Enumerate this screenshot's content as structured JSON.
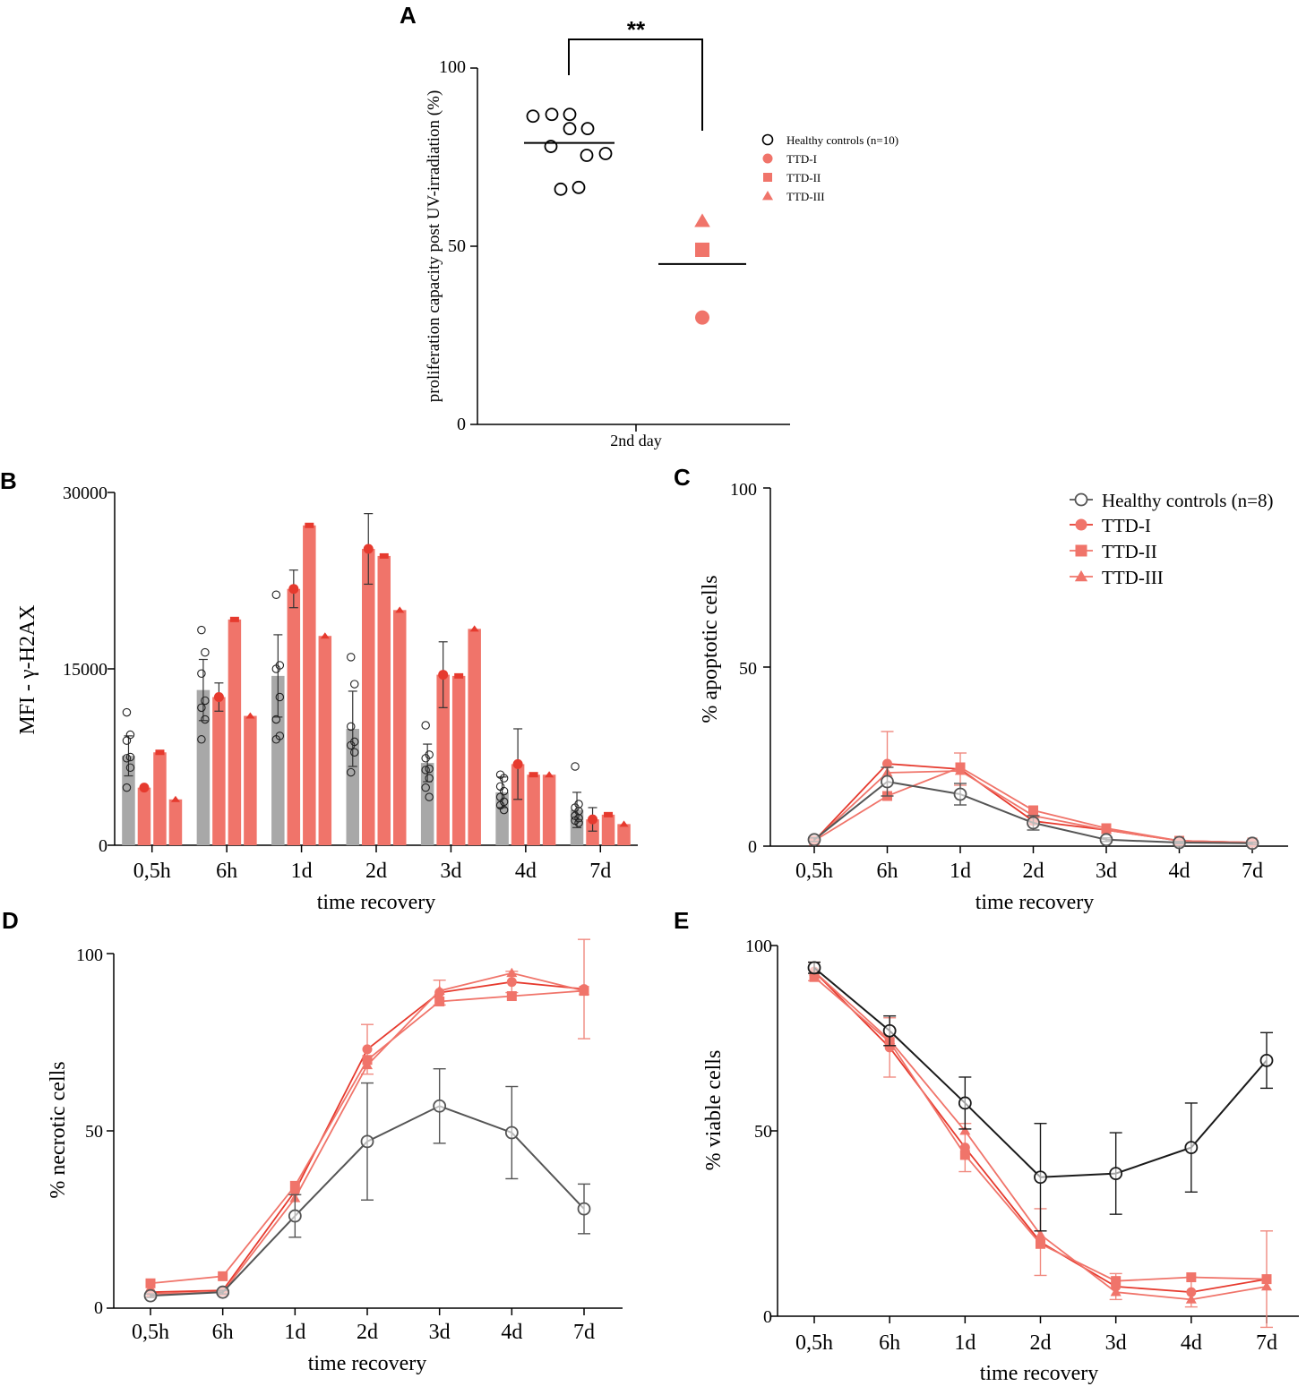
{
  "colors": {
    "red": "#e63a2e",
    "salmon": "#f0746a",
    "grey": "#a8a8a8",
    "dark": "#1a1a1a",
    "mid": "#555555"
  },
  "panels": [
    {
      "id": "A",
      "letter": "A"
    },
    {
      "id": "B",
      "letter": "B"
    },
    {
      "id": "C",
      "letter": "C"
    },
    {
      "id": "D",
      "letter": "D"
    },
    {
      "id": "E",
      "letter": "E"
    }
  ],
  "chart_data": [
    {
      "panel": "A",
      "type": "scatter",
      "title": "",
      "xlabel": "2nd day",
      "ylabel": "proliferation capacity post UV-irradiation (%)",
      "ylim": [
        0,
        100
      ],
      "yticks": [
        "0",
        "50",
        "100"
      ],
      "significance": "**",
      "groups": [
        {
          "name": "Healthy controls",
          "values": [
            86.5,
            87,
            83,
            83,
            76,
            78,
            75.5,
            87,
            66,
            66.5
          ],
          "mean": 79
        },
        {
          "name": "TTD",
          "mean": 45,
          "points": [
            {
              "series": "TTD-I",
              "value": 30
            },
            {
              "series": "TTD-II",
              "value": 49
            },
            {
              "series": "TTD-III",
              "value": 57
            }
          ]
        }
      ],
      "legend": [
        "Healthy controls (n=10)",
        "TTD-I",
        "TTD-II",
        "TTD-III"
      ]
    },
    {
      "panel": "B",
      "type": "bar",
      "xlabel": "time recovery",
      "ylabel": "MFI - γ-H2AX",
      "ylim": [
        0,
        30000
      ],
      "yticks": [
        "0",
        "15000",
        "30000"
      ],
      "categories": [
        "0,5h",
        "6h",
        "1d",
        "2d",
        "3d",
        "4d",
        "7d"
      ],
      "series": [
        {
          "name": "Healthy controls",
          "values": [
            7600,
            13200,
            14400,
            9900,
            7000,
            4500,
            3000
          ],
          "errors": [
            1700,
            2600,
            3500,
            3200,
            1600,
            1300,
            1500
          ]
        },
        {
          "name": "TTD-I",
          "values": [
            4900,
            12600,
            21800,
            25200,
            14500,
            6900,
            2200
          ],
          "errors": [
            0,
            1200,
            1600,
            3000,
            2800,
            3000,
            1000
          ]
        },
        {
          "name": "TTD-II",
          "values": [
            7900,
            19200,
            27200,
            24600,
            14400,
            6000,
            2600
          ],
          "errors": [
            0,
            0,
            0,
            0,
            0,
            0,
            0
          ]
        },
        {
          "name": "TTD-III",
          "values": [
            3900,
            11000,
            17800,
            20000,
            18400,
            6000,
            1800
          ],
          "errors": [
            0,
            0,
            0,
            0,
            0,
            0,
            0
          ]
        }
      ],
      "control_points": [
        [
          11300,
          9400,
          8900,
          7500,
          7400,
          6600,
          4900
        ],
        [
          18300,
          16400,
          14600,
          12300,
          11700,
          10700,
          9000
        ],
        [
          21300,
          15300,
          15000,
          12600,
          10700,
          9300,
          9000
        ],
        [
          16000,
          13700,
          10100,
          8800,
          8500,
          7900,
          6200
        ],
        [
          10200,
          7700,
          7400,
          6500,
          6400,
          5700,
          4900,
          4100
        ],
        [
          6000,
          5700,
          5000,
          4600,
          4100,
          3700,
          3400,
          3000
        ],
        [
          6700,
          3500,
          3200,
          2900,
          2500,
          2300,
          2100,
          1900
        ]
      ]
    },
    {
      "panel": "C",
      "type": "line",
      "xlabel": "time recovery",
      "ylabel": "% apoptotic cells",
      "ylim": [
        0,
        100
      ],
      "yticks": [
        "0",
        "50",
        "100"
      ],
      "categories": [
        "0,5h",
        "6h",
        "1d",
        "2d",
        "3d",
        "4d",
        "7d"
      ],
      "series": [
        {
          "name": "Healthy controls (n=8)",
          "values": [
            1.8,
            18,
            14.5,
            6.5,
            1.8,
            1,
            0.8
          ],
          "errors": [
            0.5,
            4,
            3,
            2,
            0.5,
            0.3,
            0.3
          ]
        },
        {
          "name": "TTD-I",
          "values": [
            1.5,
            23,
            21.5,
            7,
            4.5,
            1.5,
            1
          ],
          "errors": [
            0,
            9,
            4.5,
            1,
            0,
            0,
            0
          ]
        },
        {
          "name": "TTD-II",
          "values": [
            1.5,
            14,
            22,
            10,
            5,
            1.5,
            1
          ],
          "errors": [
            0,
            0,
            0,
            0,
            0,
            0,
            0
          ]
        },
        {
          "name": "TTD-III",
          "values": [
            1.5,
            20.5,
            21,
            8.5,
            4.5,
            1.5,
            1
          ],
          "errors": [
            0,
            0,
            0,
            0,
            0,
            0,
            0
          ]
        }
      ]
    },
    {
      "panel": "D",
      "type": "line",
      "xlabel": "time recovery",
      "ylabel": "% necrotic cells",
      "ylim": [
        0,
        100
      ],
      "yticks": [
        "0",
        "50",
        "100"
      ],
      "categories": [
        "0,5h",
        "6h",
        "1d",
        "2d",
        "3d",
        "4d",
        "7d"
      ],
      "series": [
        {
          "name": "Healthy controls",
          "values": [
            3.5,
            4.5,
            26,
            47,
            57,
            49.5,
            28
          ],
          "errors": [
            0.5,
            0.5,
            6,
            16.5,
            10.5,
            13,
            7
          ]
        },
        {
          "name": "TTD-I",
          "values": [
            4.5,
            5,
            33,
            73,
            89,
            92,
            90
          ],
          "errors": [
            0,
            0,
            0,
            7,
            3.5,
            3,
            14
          ]
        },
        {
          "name": "TTD-II",
          "values": [
            7,
            9,
            34.5,
            70,
            86.5,
            88,
            89.5
          ],
          "errors": [
            0,
            0,
            0,
            0,
            0,
            0,
            0
          ]
        },
        {
          "name": "TTD-III",
          "values": [
            4,
            4.5,
            31,
            68.5,
            89.5,
            94.5,
            89.5
          ],
          "errors": [
            0,
            0,
            0,
            0,
            0,
            0,
            0
          ]
        }
      ]
    },
    {
      "panel": "E",
      "type": "line",
      "xlabel": "time recovery",
      "ylabel": "% viable cells",
      "ylim": [
        0,
        100
      ],
      "yticks": [
        "0",
        "50",
        "100"
      ],
      "categories": [
        "0,5h",
        "6h",
        "1d",
        "2d",
        "3d",
        "4d",
        "7d"
      ],
      "series": [
        {
          "name": "Healthy controls",
          "values": [
            94,
            77,
            57.5,
            37.5,
            38.5,
            45.5,
            69
          ],
          "errors": [
            1.5,
            4,
            7,
            14.5,
            11,
            12,
            7.5
          ]
        },
        {
          "name": "TTD-I",
          "values": [
            93,
            72.5,
            45.5,
            20,
            8,
            6.5,
            10
          ],
          "errors": [
            2.5,
            8,
            6.5,
            9,
            3.5,
            4,
            13
          ]
        },
        {
          "name": "TTD-II",
          "values": [
            91.5,
            74,
            43.5,
            19.5,
            9.5,
            10.5,
            10
          ],
          "errors": [
            0,
            0,
            0,
            0,
            0,
            0,
            0
          ]
        },
        {
          "name": "TTD-III",
          "values": [
            93,
            74.5,
            50,
            22,
            6.5,
            4.5,
            8
          ],
          "errors": [
            0,
            0,
            0,
            0,
            0,
            0,
            0
          ]
        }
      ]
    }
  ]
}
